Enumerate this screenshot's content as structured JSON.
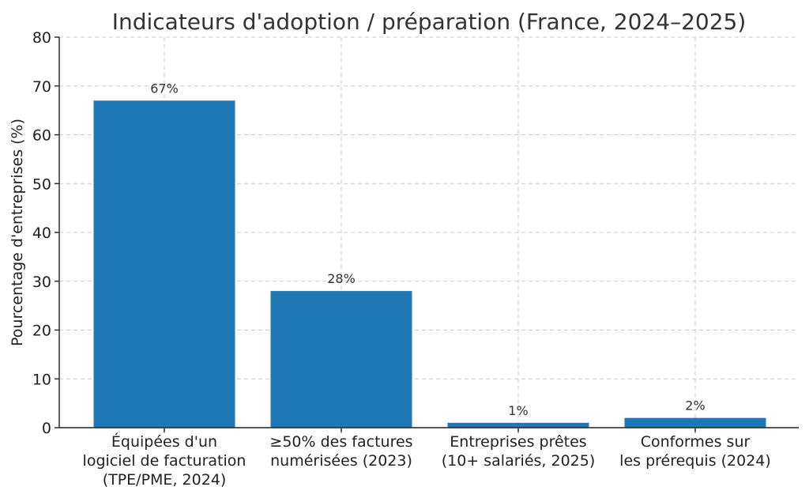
{
  "chart_data": {
    "type": "bar",
    "title": "Indicateurs d'adoption / préparation (France, 2024–2025)",
    "xlabel": "",
    "ylabel": "Pourcentage d'entreprises (%)",
    "ylim": [
      0,
      80
    ],
    "yticks": [
      "0",
      "10",
      "20",
      "30",
      "40",
      "50",
      "60",
      "70",
      "80"
    ],
    "grid": true,
    "bar_color": "#1f77b4",
    "categories": [
      [
        "Équipées d'un",
        "logiciel de facturation",
        "(TPE/PME, 2024)"
      ],
      [
        "≥50% des factures",
        "numérisées (2023)"
      ],
      [
        "Entreprises prêtes",
        "(10+ salariés, 2025)"
      ],
      [
        "Conformes sur",
        "les prérequis (2024)"
      ]
    ],
    "values": [
      67,
      28,
      1,
      2
    ],
    "data_labels": [
      "67%",
      "28%",
      "1%",
      "2%"
    ]
  }
}
